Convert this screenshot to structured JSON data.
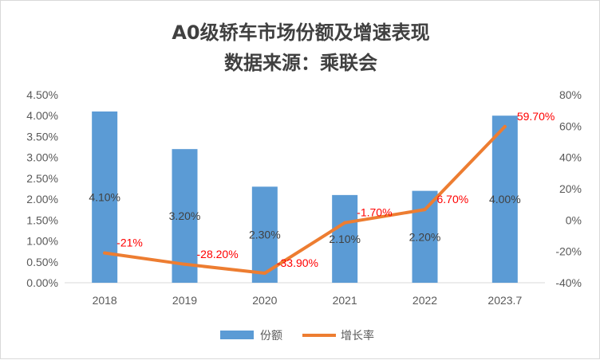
{
  "chart_data": {
    "type": "bar",
    "title": "A0级轿车市场份额及增速表现",
    "subtitle": "数据来源：乘联会",
    "categories": [
      "2018",
      "2019",
      "2020",
      "2021",
      "2022",
      "2023.7"
    ],
    "series": [
      {
        "name": "份额",
        "type": "bar",
        "axis": "left",
        "values": [
          4.1,
          3.2,
          2.3,
          2.1,
          2.2,
          4.0
        ],
        "labels": [
          "4.10%",
          "3.20%",
          "2.30%",
          "2.10%",
          "2.20%",
          "4.00%"
        ],
        "color": "#5b9bd5"
      },
      {
        "name": "增长率",
        "type": "line",
        "axis": "right",
        "values": [
          -21,
          -28.2,
          -33.9,
          -1.7,
          6.7,
          59.7
        ],
        "labels": [
          "-21%",
          "-28.20%",
          "-33.90%",
          "-1.70%",
          "6.70%",
          "59.70%"
        ],
        "color": "#ed7d31",
        "label_color": "#ff0000"
      }
    ],
    "y_left": {
      "lim": [
        0,
        4.5
      ],
      "ticks": [
        0,
        0.5,
        1.0,
        1.5,
        2.0,
        2.5,
        3.0,
        3.5,
        4.0,
        4.5
      ],
      "tick_labels": [
        "0.00%",
        "0.50%",
        "1.00%",
        "1.50%",
        "2.00%",
        "2.50%",
        "3.00%",
        "3.50%",
        "4.00%",
        "4.50%"
      ]
    },
    "y_right": {
      "lim": [
        -40,
        80
      ],
      "ticks": [
        -40,
        -20,
        0,
        20,
        40,
        60,
        80
      ],
      "tick_labels": [
        "-40%",
        "-20%",
        "0%",
        "20%",
        "40%",
        "60%",
        "80%"
      ]
    },
    "grid": false,
    "legend": "bottom"
  }
}
